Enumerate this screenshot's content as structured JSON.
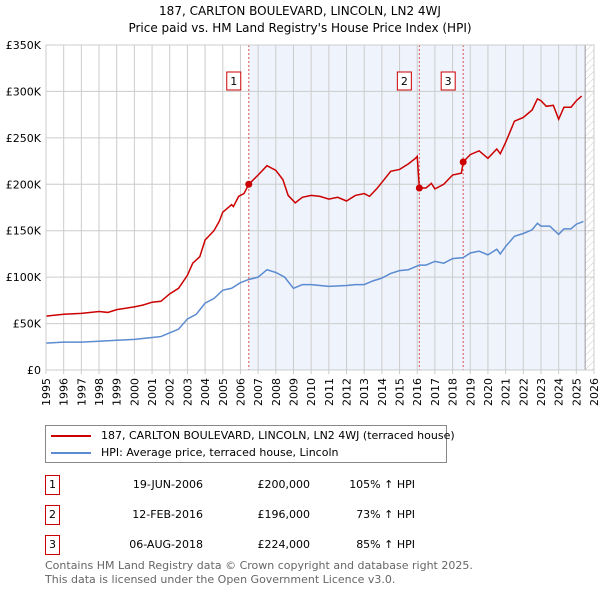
{
  "chart_data": {
    "type": "line",
    "title": "187, CARLTON BOULEVARD, LINCOLN, LN2 4WJ",
    "subtitle": "Price paid vs. HM Land Registry's House Price Index (HPI)",
    "xlim": [
      1995,
      2026
    ],
    "ylim": [
      0,
      350000
    ],
    "x_ticks": [
      "1995",
      "1996",
      "1997",
      "1998",
      "1999",
      "2000",
      "2001",
      "2002",
      "2003",
      "2004",
      "2005",
      "2006",
      "2007",
      "2008",
      "2009",
      "2010",
      "2011",
      "2012",
      "2013",
      "2014",
      "2015",
      "2016",
      "2017",
      "2018",
      "2019",
      "2020",
      "2021",
      "2022",
      "2023",
      "2024",
      "2025",
      "2026"
    ],
    "y_ticks": [
      {
        "v": 0,
        "label": "£0"
      },
      {
        "v": 50000,
        "label": "£50K"
      },
      {
        "v": 100000,
        "label": "£100K"
      },
      {
        "v": 150000,
        "label": "£150K"
      },
      {
        "v": 200000,
        "label": "£200K"
      },
      {
        "v": 250000,
        "label": "£250K"
      },
      {
        "v": 300000,
        "label": "£300K"
      },
      {
        "v": 350000,
        "label": "£350K"
      }
    ],
    "grid": true,
    "series": [
      {
        "name": "187, CARLTON BOULEVARD, LINCOLN, LN2 4WJ (terraced house)",
        "color": "#cc0000",
        "x": [
          1995,
          1996,
          1997,
          1998,
          1998.5,
          1999,
          2000,
          2000.5,
          2001,
          2001.5,
          2002,
          2002.5,
          2003,
          2003.3,
          2003.7,
          2004,
          2004.5,
          2004.8,
          2005,
          2005.5,
          2005.6,
          2005.9,
          2006.2,
          2006.47,
          2007,
          2007.5,
          2008,
          2008.4,
          2008.7,
          2009.1,
          2009.5,
          2010,
          2010.5,
          2011,
          2011.5,
          2012,
          2012.5,
          2013,
          2013.3,
          2013.7,
          2014,
          2014.5,
          2015,
          2015.5,
          2015.9,
          2016.0,
          2016.12,
          2016.5,
          2016.8,
          2017,
          2017.5,
          2018,
          2018.5,
          2018.6,
          2019,
          2019.5,
          2020,
          2020.5,
          2020.7,
          2021,
          2021.5,
          2022,
          2022.5,
          2022.8,
          2023,
          2023.3,
          2023.7,
          2024,
          2024.3,
          2024.7,
          2025,
          2025.3
        ],
        "y": [
          58,
          60,
          61,
          63,
          62,
          65,
          68,
          70,
          73,
          74,
          82,
          88,
          102,
          115,
          122,
          140,
          150,
          160,
          170,
          178,
          176,
          187,
          190,
          200,
          210,
          220,
          215,
          205,
          188,
          180,
          186,
          188,
          187,
          184,
          186,
          182,
          188,
          190,
          187,
          195,
          202,
          214,
          216,
          222,
          228,
          230,
          196,
          196,
          201,
          195,
          200,
          210,
          212,
          224,
          232,
          236,
          228,
          238,
          233,
          245,
          268,
          272,
          280,
          292,
          290,
          284,
          285,
          270,
          283,
          283,
          290,
          295
        ]
      },
      {
        "name": "HPI: Average price, terraced house, Lincoln",
        "color": "#5b8bd0",
        "x": [
          1995,
          1996,
          1997,
          1998,
          1999,
          2000,
          2001,
          2001.5,
          2002,
          2002.5,
          2003,
          2003.5,
          2004,
          2004.5,
          2005,
          2005.5,
          2006,
          2006.47,
          2007,
          2007.5,
          2008,
          2008.5,
          2009,
          2009.5,
          2010,
          2010.5,
          2011,
          2012,
          2012.5,
          2013,
          2013.5,
          2014,
          2014.5,
          2015,
          2015.5,
          2016.12,
          2016.5,
          2017,
          2017.5,
          2018,
          2018.6,
          2019,
          2019.5,
          2020,
          2020.5,
          2020.7,
          2021,
          2021.5,
          2022,
          2022.5,
          2022.8,
          2023,
          2023.5,
          2024,
          2024.3,
          2024.7,
          2025,
          2025.4
        ],
        "y": [
          29,
          30,
          30,
          31,
          32,
          33,
          35,
          36,
          40,
          44,
          55,
          60,
          72,
          77,
          86,
          88,
          94,
          97.5,
          100,
          108,
          105,
          100,
          88,
          92,
          92,
          91,
          90,
          91,
          92,
          92,
          96,
          99,
          104,
          107,
          108,
          113,
          113,
          117,
          115,
          120,
          121,
          126,
          128,
          124,
          130,
          125,
          133,
          144,
          147,
          151,
          158,
          155,
          155,
          146,
          152,
          152,
          157,
          160
        ]
      }
    ],
    "y_units": "thousands GBP",
    "sales": [
      {
        "id": "1",
        "x": 2006.47,
        "y": 200
      },
      {
        "id": "2",
        "x": 2016.12,
        "y": 196
      },
      {
        "id": "3",
        "x": 2018.6,
        "y": 224
      }
    ],
    "shaded_range": [
      2006.47,
      2025.5
    ],
    "forecast_from": 2025.5,
    "legend_placement": "below"
  },
  "table": [
    {
      "id": "1",
      "date": "19-JUN-2006",
      "price": "£200,000",
      "hpi": "105% ↑ HPI"
    },
    {
      "id": "2",
      "date": "12-FEB-2016",
      "price": "£196,000",
      "hpi": "73% ↑ HPI"
    },
    {
      "id": "3",
      "date": "06-AUG-2018",
      "price": "£224,000",
      "hpi": "85% ↑ HPI"
    }
  ],
  "footer": [
    "Contains HM Land Registry data © Crown copyright and database right 2025.",
    "This data is licensed under the Open Government Licence v3.0."
  ]
}
